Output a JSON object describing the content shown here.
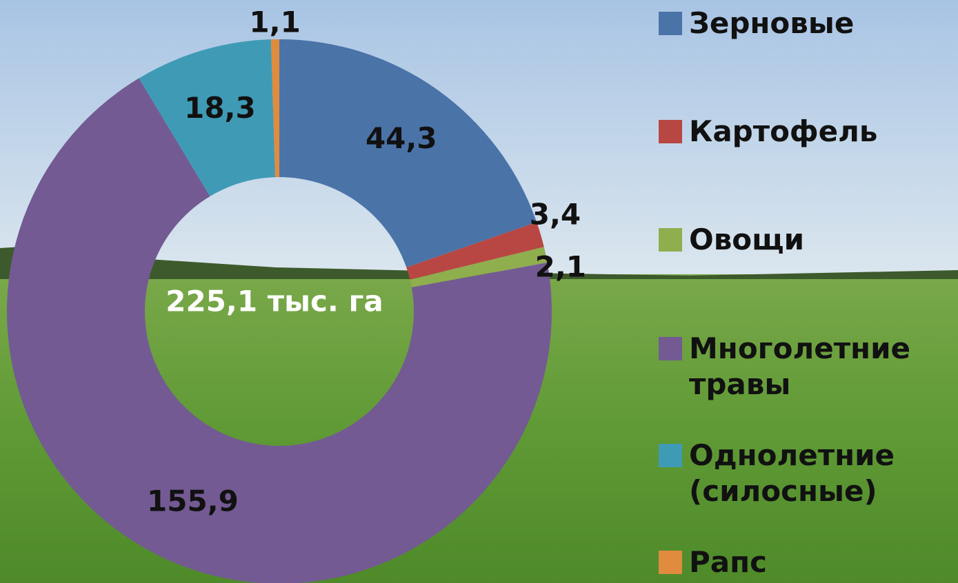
{
  "chart_data": {
    "type": "donut",
    "categories": [
      "Зерновые",
      "Картофель",
      "Овощи",
      "Многолетние травы",
      "Однолетние (силосные)",
      "Рапс"
    ],
    "values": [
      44.3,
      3.4,
      2.1,
      155.9,
      18.3,
      1.1
    ],
    "value_labels": [
      "44,3",
      "3,4",
      "2,1",
      "155,9",
      "18,3",
      "1,1"
    ],
    "colors": [
      "#4a74a8",
      "#b84743",
      "#8fae4e",
      "#735a93",
      "#3f9bb5",
      "#e08b3d"
    ],
    "center_label": "225,1 тыс. га",
    "legend": "right"
  }
}
